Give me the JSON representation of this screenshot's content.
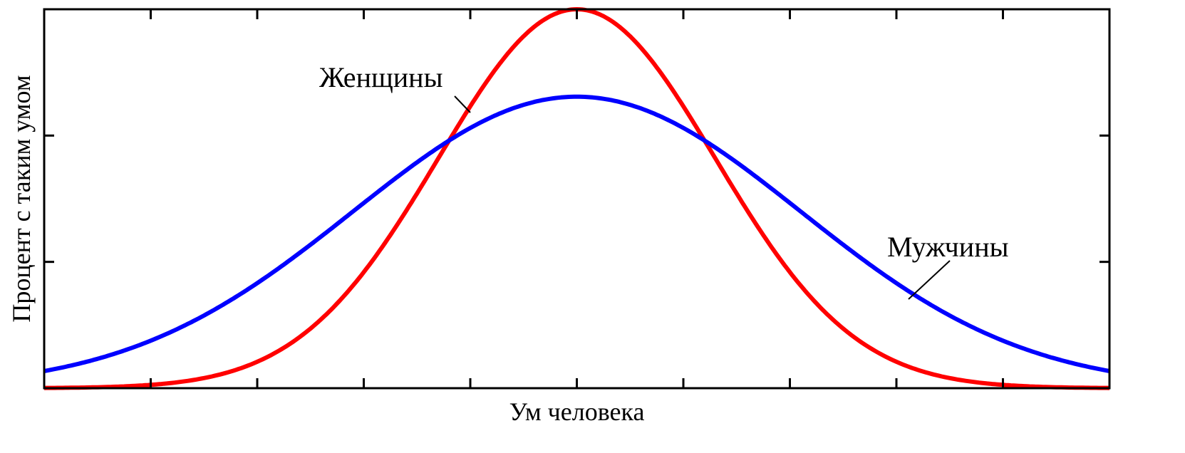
{
  "chart_data": {
    "type": "line",
    "title": "",
    "xlabel": "Ум человека",
    "ylabel": "Процент с таким умом",
    "xlim": [
      -5,
      5
    ],
    "ylim": [
      0,
      1.3
    ],
    "x_ticks": 9,
    "y_ticks": 2,
    "grid": false,
    "legend": "none",
    "series": [
      {
        "name": "Женщины",
        "color": "#ff0000",
        "mean": 0,
        "sd": 1.3,
        "peak": 1.3,
        "x": [
          -5,
          -4.5,
          -4,
          -3.5,
          -3,
          -2.5,
          -2,
          -1.5,
          -1,
          -0.5,
          0,
          0.5,
          1,
          1.5,
          2,
          2.5,
          3,
          3.5,
          4,
          4.5,
          5
        ],
        "y": [
          0,
          0.01,
          0.03,
          0.07,
          0.14,
          0.25,
          0.41,
          0.68,
          0.97,
          1.2,
          1.3,
          1.2,
          0.97,
          0.68,
          0.41,
          0.25,
          0.14,
          0.07,
          0.03,
          0.01,
          0
        ]
      },
      {
        "name": "Мужчины",
        "color": "#0000ff",
        "mean": 0,
        "sd": 2.1,
        "peak": 1.0,
        "x": [
          -5,
          -4.5,
          -4,
          -3.5,
          -3,
          -2.5,
          -2,
          -1.5,
          -1,
          -0.5,
          0,
          0.5,
          1,
          1.5,
          2,
          2.5,
          3,
          3.5,
          4,
          4.5,
          5
        ],
        "y": [
          0.05,
          0.1,
          0.16,
          0.25,
          0.36,
          0.49,
          0.63,
          0.77,
          0.89,
          0.97,
          1.0,
          0.97,
          0.89,
          0.77,
          0.63,
          0.49,
          0.36,
          0.25,
          0.16,
          0.1,
          0.05
        ]
      }
    ]
  }
}
